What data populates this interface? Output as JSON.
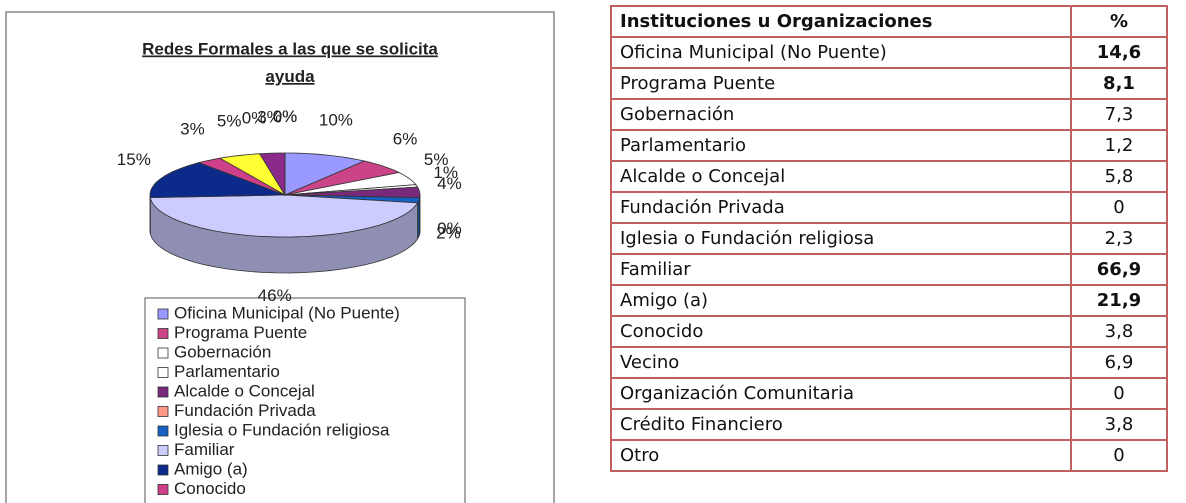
{
  "chart_data": {
    "type": "pie",
    "title": "Redes Formales a las que se solicita ayuda",
    "categories": [
      "Oficina Municipal (No Puente)",
      "Programa Puente",
      "Gobernación",
      "Parlamentario",
      "Alcalde o Concejal",
      "Fundación Privada",
      "Iglesia o Fundación religiosa",
      "Familiar",
      "Amigo (a)",
      "Conocido",
      null,
      null,
      null,
      null,
      null
    ],
    "values": [
      10,
      6,
      5,
      1,
      4,
      0,
      2,
      46,
      15,
      3,
      5,
      0,
      3,
      0,
      0
    ],
    "value_labels": [
      "10%",
      "6%",
      "5%",
      "1%",
      "4%",
      "0%",
      "2%",
      "46%",
      "15%",
      "3%",
      "5%",
      "0%",
      "3%",
      "0%",
      "0%"
    ],
    "colors": [
      "#9999ff",
      "#cc4488",
      "#ffffff",
      "#ffffff",
      "#7a2a7a",
      "#ff9a8a",
      "#1560c0",
      "#ccccff",
      "#0c2a8a",
      "#d0408a",
      "#ffff33",
      "#66ffff",
      "#8a2a8a",
      "#800000",
      "#008080"
    ],
    "legend": true
  },
  "table": {
    "header": [
      "Instituciones u Organizaciones",
      "%"
    ],
    "rows": [
      {
        "name": "Oficina Municipal (No Puente)",
        "value": "14,6",
        "bold": true
      },
      {
        "name": "Programa Puente",
        "value": "8,1",
        "bold": true
      },
      {
        "name": "Gobernación",
        "value": "7,3",
        "bold": false
      },
      {
        "name": "Parlamentario",
        "value": "1,2",
        "bold": false
      },
      {
        "name": "Alcalde o Concejal",
        "value": "5,8",
        "bold": false
      },
      {
        "name": "Fundación Privada",
        "value": "0",
        "bold": false
      },
      {
        "name": "Iglesia o Fundación religiosa",
        "value": "2,3",
        "bold": false
      },
      {
        "name": "Familiar",
        "value": "66,9",
        "bold": true
      },
      {
        "name": "Amigo (a)",
        "value": "21,9",
        "bold": true
      },
      {
        "name": "Conocido",
        "value": "3,8",
        "bold": false
      },
      {
        "name": "Vecino",
        "value": "6,9",
        "bold": false
      },
      {
        "name": "Organización Comunitaria",
        "value": "0",
        "bold": false
      },
      {
        "name": "Crédito Financiero",
        "value": "3,8",
        "bold": false
      },
      {
        "name": "Otro",
        "value": "0",
        "bold": false
      }
    ]
  }
}
